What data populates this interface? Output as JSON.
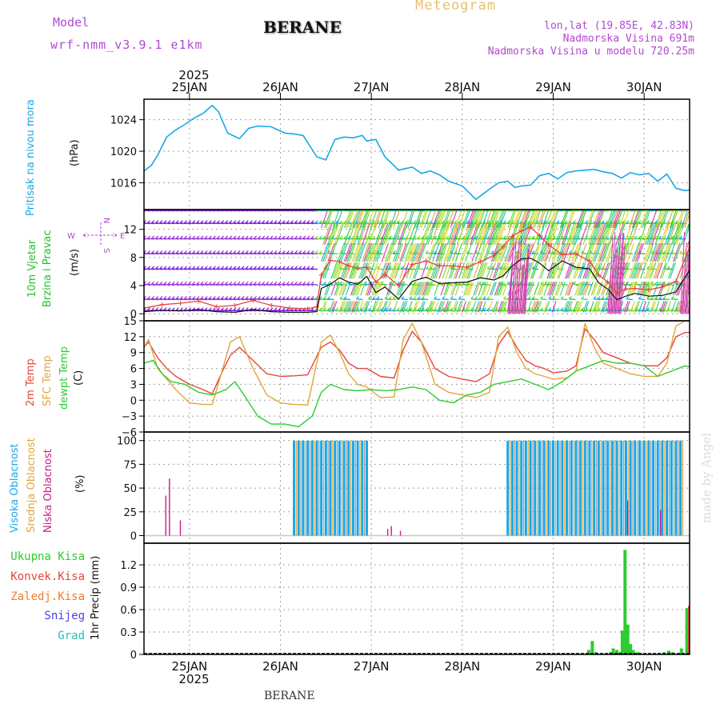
{
  "header": {
    "meteogram_label": "Meteogram",
    "model_label": "Model",
    "model_name": "wrf-nmm_v3.9.1 e1km",
    "station": "BERANE",
    "lonlat": "lon,lat (19.85E, 42.83N)",
    "elevation": "Nadmorska Visina 691m",
    "model_elevation": "Nadmorska Visina u modelu 720.25m",
    "watermark": "made by Angel",
    "footer_station": "BERANE"
  },
  "colors": {
    "pressure": "#1aa7e6",
    "wind_panel_label": "#22c02a",
    "wind_speed_line": "#111111",
    "gust": "#e8443b",
    "temp2m": "#e8443b",
    "tsfc": "#e0a63c",
    "dewpt": "#2ecc2e",
    "cloud_high": "#1aa7e6",
    "cloud_mid": "#e0a63c",
    "cloud_low": "#cc1a8a",
    "precip_total": "#2ecc2e",
    "precip_conv": "#e8443b",
    "precip_frz": "#f07c30",
    "precip_snow": "#4a3ee0",
    "precip_hail": "#22c0b0",
    "compass": "#b04ad0",
    "header_purple": "#b04ad0",
    "header_gold": "#e8c070"
  },
  "chart_data": [
    {
      "type": "line",
      "id": "pressure",
      "ylabel": "Pritisak na nivou mora",
      "unit": "(hPa)",
      "yticks": [
        1016,
        1020,
        1024
      ],
      "ylim": [
        1012.6,
        1026.6
      ],
      "x_units": "days from 2025-01-24 00Z",
      "x_axis": {
        "top_year": "2025",
        "top_labels": [
          "25JAN",
          "26JAN",
          "27JAN",
          "28JAN",
          "29JAN",
          "30JAN"
        ],
        "bottom_labels": [
          "25JAN",
          "26JAN",
          "27JAN",
          "28JAN",
          "29JAN",
          "30JAN"
        ],
        "bottom_year": "2025",
        "xlim": [
          0.5,
          6.5
        ]
      },
      "series": [
        {
          "key": "mslp",
          "x": [
            0.5,
            0.58,
            0.65,
            0.75,
            0.85,
            0.95,
            1.05,
            1.15,
            1.25,
            1.32,
            1.42,
            1.55,
            1.65,
            1.75,
            1.9,
            2.05,
            2.15,
            2.25,
            2.4,
            2.5,
            2.6,
            2.7,
            2.8,
            2.9,
            2.95,
            3.05,
            3.15,
            3.3,
            3.45,
            3.55,
            3.65,
            3.75,
            3.85,
            4.0,
            4.15,
            4.3,
            4.4,
            4.5,
            4.58,
            4.65,
            4.75,
            4.85,
            4.95,
            5.05,
            5.15,
            5.25,
            5.35,
            5.45,
            5.55,
            5.65,
            5.75,
            5.85,
            5.95,
            6.05,
            6.15,
            6.25,
            6.35,
            6.45,
            6.5
          ],
          "y": [
            1017.5,
            1018.2,
            1019.5,
            1021.8,
            1022.7,
            1023.4,
            1024.2,
            1024.8,
            1025.8,
            1025.0,
            1022.3,
            1021.6,
            1022.9,
            1023.2,
            1023.1,
            1022.3,
            1022.2,
            1022.0,
            1019.3,
            1018.9,
            1021.5,
            1021.8,
            1021.7,
            1022.0,
            1021.3,
            1021.5,
            1019.3,
            1017.6,
            1018.0,
            1017.2,
            1017.5,
            1017.0,
            1016.2,
            1015.6,
            1013.9,
            1015.2,
            1016.0,
            1016.2,
            1015.4,
            1015.6,
            1015.7,
            1016.9,
            1017.2,
            1016.5,
            1017.3,
            1017.5,
            1017.6,
            1017.7,
            1017.4,
            1017.2,
            1016.6,
            1017.3,
            1017.0,
            1017.2,
            1016.2,
            1017.1,
            1015.3,
            1015.0,
            1015.1
          ]
        }
      ]
    },
    {
      "type": "line",
      "id": "wind",
      "ylabel_lines": [
        "10m Vjetar",
        "Brzina i Pravac"
      ],
      "unit": "(m/s)",
      "compass": {
        "n": "N",
        "s": "S",
        "e": "E",
        "w": "W"
      },
      "yticks": [
        0,
        4,
        8,
        12
      ],
      "ylim": [
        -1,
        14.8
      ],
      "series": [
        {
          "key": "speed",
          "x": [
            0.5,
            0.7,
            0.9,
            1.1,
            1.3,
            1.5,
            1.7,
            1.9,
            2.1,
            2.3,
            2.4,
            2.45,
            2.55,
            2.65,
            2.75,
            2.85,
            2.95,
            3.05,
            3.15,
            3.3,
            3.45,
            3.6,
            3.75,
            3.9,
            4.05,
            4.2,
            4.35,
            4.45,
            4.55,
            4.65,
            4.75,
            4.85,
            4.95,
            5.1,
            5.25,
            5.4,
            5.5,
            5.6,
            5.7,
            5.8,
            5.9,
            6.05,
            6.2,
            6.35,
            6.5
          ],
          "y": [
            0.3,
            0.5,
            0.4,
            0.6,
            0.3,
            0.2,
            0.6,
            0.3,
            0.2,
            0.2,
            0.3,
            3.6,
            4.2,
            5.1,
            4.5,
            4.2,
            5.3,
            3.0,
            3.8,
            2.1,
            4.6,
            5.2,
            4.3,
            4.4,
            4.5,
            5.1,
            4.8,
            5.4,
            6.8,
            7.8,
            7.9,
            7.2,
            6.1,
            7.5,
            6.6,
            6.4,
            4.4,
            3.5,
            2.0,
            2.5,
            2.9,
            2.5,
            2.6,
            3.1,
            6.2
          ]
        },
        {
          "key": "gust",
          "x": [
            0.5,
            0.7,
            0.9,
            1.1,
            1.3,
            1.5,
            1.7,
            1.9,
            2.1,
            2.3,
            2.4,
            2.45,
            2.55,
            2.65,
            2.75,
            2.85,
            2.95,
            3.05,
            3.15,
            3.3,
            3.45,
            3.6,
            3.75,
            3.9,
            4.05,
            4.2,
            4.35,
            4.45,
            4.55,
            4.65,
            4.75,
            4.85,
            4.95,
            5.1,
            5.25,
            5.4,
            5.5,
            5.6,
            5.7,
            5.8,
            5.9,
            6.05,
            6.2,
            6.35,
            6.5
          ],
          "y": [
            0.8,
            1.3,
            1.5,
            1.8,
            1.0,
            1.2,
            1.9,
            1.2,
            0.8,
            0.7,
            1.0,
            5.5,
            7.6,
            7.4,
            6.8,
            6.5,
            6.6,
            4.5,
            5.6,
            4.0,
            7.0,
            7.5,
            6.8,
            6.8,
            6.6,
            7.4,
            8.3,
            9.5,
            11.0,
            11.8,
            12.3,
            11.1,
            9.8,
            8.4,
            8.5,
            7.5,
            5.5,
            4.5,
            3.0,
            3.5,
            3.6,
            3.4,
            3.8,
            4.6,
            9.5
          ]
        }
      ],
      "barb_rows": {
        "purple_rows_y": [
          0.4,
          2.0,
          4.1,
          6.3,
          8.5,
          10.6,
          12.8,
          14.6
        ],
        "bright_start_day": 2.45
      }
    },
    {
      "type": "line",
      "id": "temperature",
      "ylabel_lines": [
        "2m Temp",
        "SFC Temp",
        "dewpt Temp"
      ],
      "unit": "(C)",
      "yticks": [
        -6,
        -3,
        0,
        3,
        6,
        9,
        12,
        15
      ],
      "ylim": [
        -6,
        15
      ],
      "series": [
        {
          "key": "t2m",
          "x": [
            0.5,
            0.55,
            0.65,
            0.75,
            0.85,
            1.0,
            1.15,
            1.25,
            1.35,
            1.45,
            1.55,
            1.7,
            1.85,
            2.0,
            2.15,
            2.3,
            2.45,
            2.55,
            2.65,
            2.75,
            2.85,
            2.95,
            3.1,
            3.25,
            3.35,
            3.45,
            3.55,
            3.7,
            3.85,
            4.0,
            4.15,
            4.3,
            4.4,
            4.5,
            4.6,
            4.7,
            4.8,
            4.9,
            5.0,
            5.15,
            5.25,
            5.35,
            5.45,
            5.55,
            5.7,
            5.85,
            6.0,
            6.15,
            6.25,
            6.35,
            6.45,
            6.5
          ],
          "y": [
            10.0,
            11.0,
            8.0,
            6.0,
            4.5,
            3.0,
            2.0,
            1.2,
            5.0,
            8.5,
            10.0,
            7.5,
            5.0,
            4.5,
            4.6,
            4.8,
            10.0,
            11.0,
            9.5,
            7.0,
            6.0,
            6.0,
            4.5,
            4.2,
            9.5,
            13.0,
            11.0,
            6.0,
            4.5,
            4.0,
            3.5,
            5.0,
            10.5,
            13.0,
            10.0,
            7.5,
            6.5,
            6.0,
            5.2,
            5.5,
            6.5,
            13.5,
            11.5,
            9.0,
            8.0,
            7.0,
            6.5,
            6.5,
            8.0,
            12.0,
            12.8,
            12.8
          ]
        },
        {
          "key": "tsfc",
          "x": [
            0.5,
            0.55,
            0.65,
            0.75,
            0.85,
            1.0,
            1.15,
            1.25,
            1.35,
            1.45,
            1.55,
            1.7,
            1.85,
            2.0,
            2.15,
            2.3,
            2.45,
            2.55,
            2.65,
            2.75,
            2.85,
            2.95,
            3.1,
            3.25,
            3.35,
            3.45,
            3.55,
            3.7,
            3.85,
            4.0,
            4.15,
            4.3,
            4.4,
            4.5,
            4.6,
            4.7,
            4.8,
            4.9,
            5.0,
            5.15,
            5.25,
            5.35,
            5.45,
            5.55,
            5.7,
            5.85,
            6.0,
            6.15,
            6.25,
            6.35,
            6.45,
            6.5
          ],
          "y": [
            10.0,
            11.5,
            6.0,
            4.0,
            2.0,
            -0.5,
            -0.8,
            -0.8,
            5.0,
            11.0,
            12.0,
            6.0,
            1.0,
            -0.5,
            -0.8,
            -0.9,
            11.0,
            12.3,
            9.0,
            5.0,
            3.0,
            2.5,
            0.5,
            0.6,
            11.5,
            14.5,
            11.0,
            3.0,
            1.5,
            1.0,
            0.5,
            1.5,
            12.0,
            13.8,
            9.0,
            6.0,
            5.0,
            4.5,
            4.0,
            4.2,
            5.5,
            14.5,
            10.0,
            7.0,
            6.0,
            5.0,
            4.5,
            4.5,
            7.0,
            14.0,
            15.0,
            15.0
          ]
        },
        {
          "key": "dewpt",
          "x": [
            0.5,
            0.6,
            0.7,
            0.8,
            0.95,
            1.1,
            1.25,
            1.4,
            1.5,
            1.6,
            1.75,
            1.9,
            2.05,
            2.2,
            2.35,
            2.45,
            2.55,
            2.7,
            2.85,
            3.0,
            3.15,
            3.3,
            3.45,
            3.6,
            3.75,
            3.9,
            4.05,
            4.2,
            4.35,
            4.5,
            4.65,
            4.8,
            4.95,
            5.1,
            5.25,
            5.4,
            5.55,
            5.7,
            5.85,
            6.0,
            6.15,
            6.3,
            6.45,
            6.5
          ],
          "y": [
            7.0,
            7.5,
            5.0,
            3.5,
            3.0,
            1.5,
            1.0,
            2.0,
            3.5,
            1.0,
            -3.0,
            -4.5,
            -4.5,
            -5.0,
            -3.0,
            1.5,
            3.0,
            2.0,
            1.8,
            2.0,
            1.8,
            2.0,
            2.5,
            2.0,
            0.0,
            -0.5,
            1.0,
            1.5,
            3.0,
            3.5,
            4.0,
            3.0,
            2.0,
            3.5,
            5.5,
            6.5,
            7.5,
            7.0,
            7.0,
            6.5,
            4.5,
            5.5,
            6.5,
            6.3
          ]
        }
      ]
    },
    {
      "type": "bar",
      "id": "clouds",
      "ylabel_lines": [
        "Visoka Oblacnost",
        "Srednja Oblacnost",
        "Niska Oblacnost"
      ],
      "unit": "(%)",
      "yticks": [
        0,
        25,
        50,
        75,
        100
      ],
      "ylim": [
        -8,
        109
      ],
      "segments": [
        {
          "start": 2.15,
          "end": 2.95,
          "step": 0.025,
          "value": 100
        },
        {
          "start": 4.5,
          "end": 6.45,
          "step": 0.025,
          "value": 100
        }
      ],
      "low_spikes": [
        {
          "x": 0.74,
          "value": 42
        },
        {
          "x": 0.78,
          "value": 60
        },
        {
          "x": 0.9,
          "value": 16
        },
        {
          "x": 3.18,
          "value": 7
        },
        {
          "x": 3.22,
          "value": 10
        },
        {
          "x": 3.32,
          "value": 5
        },
        {
          "x": 5.82,
          "value": 37
        },
        {
          "x": 6.18,
          "value": 27
        }
      ]
    },
    {
      "type": "bar",
      "id": "precip",
      "ylabel": "1hr Precip (mm)",
      "legend": [
        "Ukupna Kisa",
        "Konvek.Kisa",
        "Zaledj.Kisa",
        "Snijeg",
        "Grad"
      ],
      "yticks": [
        0,
        0.3,
        0.6,
        0.9,
        1.2
      ],
      "ytick_labels": [
        "0",
        "0.3",
        "0.6",
        "0.9",
        "1.2"
      ],
      "ylim": [
        0,
        1.49
      ],
      "bars": [
        {
          "x": 5.39,
          "value": 0.06
        },
        {
          "x": 5.43,
          "value": 0.18
        },
        {
          "x": 5.47,
          "value": 0.03
        },
        {
          "x": 5.63,
          "value": 0.03
        },
        {
          "x": 5.66,
          "value": 0.08
        },
        {
          "x": 5.7,
          "value": 0.06
        },
        {
          "x": 5.73,
          "value": 0.03
        },
        {
          "x": 5.76,
          "value": 0.32
        },
        {
          "x": 5.79,
          "value": 1.4
        },
        {
          "x": 5.82,
          "value": 0.4
        },
        {
          "x": 5.85,
          "value": 0.14
        },
        {
          "x": 5.88,
          "value": 0.06
        },
        {
          "x": 5.93,
          "value": 0.03
        },
        {
          "x": 6.22,
          "value": 0.03
        },
        {
          "x": 6.27,
          "value": 0.05
        },
        {
          "x": 6.31,
          "value": 0.03
        },
        {
          "x": 6.41,
          "value": 0.08
        },
        {
          "x": 6.47,
          "value": 0.62
        }
      ],
      "conv_bars": [
        {
          "x": 6.5,
          "value": 0.65
        }
      ]
    }
  ]
}
